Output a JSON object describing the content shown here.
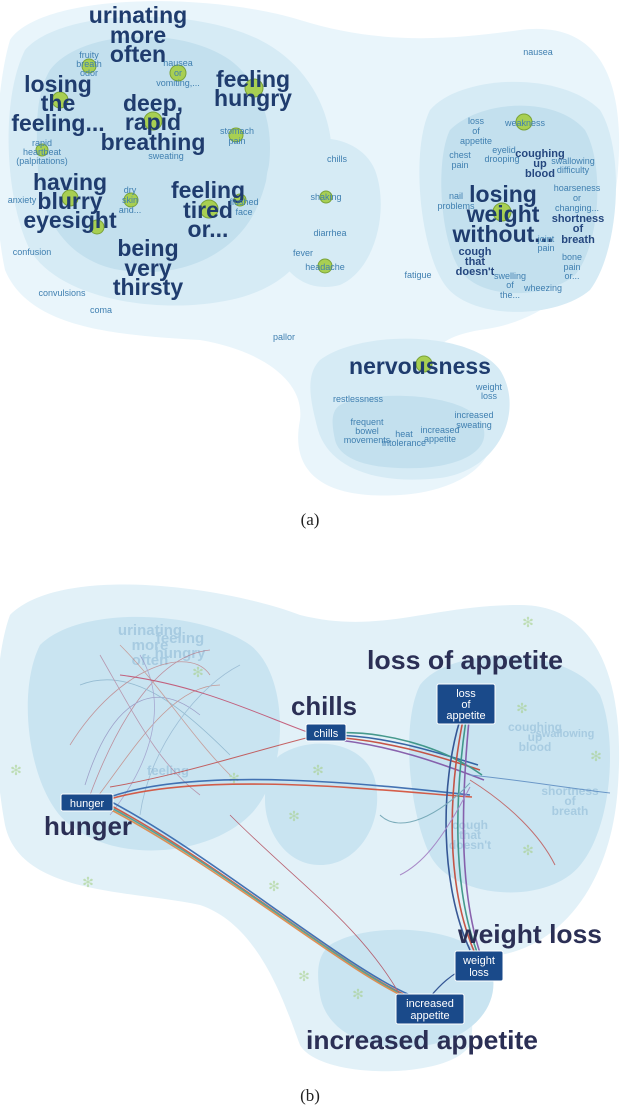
{
  "panel_a": {
    "caption": "(a)",
    "big_labels": [
      "urinating",
      "more",
      "often",
      "losing",
      "the",
      "feeling...",
      "deep,",
      "rapid",
      "breathing",
      "feeling",
      "hungry",
      "having",
      "blurry",
      "eyesight",
      "feeling",
      "tired",
      "or...",
      "being",
      "very",
      "thirsty",
      "losing",
      "weight",
      "without...",
      "nervousness"
    ],
    "medium_labels": [
      "coughing",
      "up",
      "blood",
      "shortness",
      "of",
      "breath",
      "cough",
      "that",
      "doesn't"
    ],
    "small_labels": [
      "fruity",
      "breath",
      "odor",
      "nausea",
      "or",
      "vomiting,...",
      "stomach",
      "pain",
      "rapid",
      "heartbeat",
      "(palpitations)",
      "sweating",
      "dry",
      "skin",
      "and...",
      "flushed",
      "face",
      "anxiety",
      "confusion",
      "convulsions",
      "coma",
      "chills",
      "shaking",
      "diarrhea",
      "fever",
      "headache",
      "fatigue",
      "pallor",
      "nausea",
      "loss",
      "of",
      "appetite",
      "weakness",
      "chest",
      "pain",
      "eyelid",
      "drooping",
      "swallowing",
      "difficulty",
      "hoarseness",
      "or",
      "changing...",
      "nail",
      "problems",
      "joint",
      "pain",
      "bone",
      "pain",
      "or...",
      "swelling",
      "of",
      "the...",
      "wheezing",
      "restlessness",
      "weight",
      "loss",
      "frequent",
      "bowel",
      "movements",
      "heat",
      "intolerance",
      "increased",
      "appetite",
      "increased",
      "sweating"
    ]
  },
  "panel_b": {
    "caption": "(b)",
    "callouts": [
      "loss of appetite",
      "chills",
      "hunger",
      "weight loss",
      "increased appetite"
    ],
    "tags": [
      "loss",
      "of",
      "appetite",
      "chills",
      "hunger",
      "weight",
      "loss",
      "increased",
      "appetite"
    ],
    "faded_labels": [
      "urinating",
      "more",
      "often",
      "feeling",
      "hungry",
      "coughing",
      "up",
      "blood",
      "shortness",
      "of",
      "breath",
      "cough",
      "that",
      "doesn't",
      "swallowing",
      "feeling"
    ]
  },
  "colors": {
    "region_outer": "#e8f4fa",
    "region_mid": "#cfe6f2",
    "region_inner": "#b6d9ea",
    "node": "#9fc94a",
    "big_text": "#1f3c6e",
    "small_text": "#3f7fb0",
    "tag": "#1a4a8a"
  }
}
